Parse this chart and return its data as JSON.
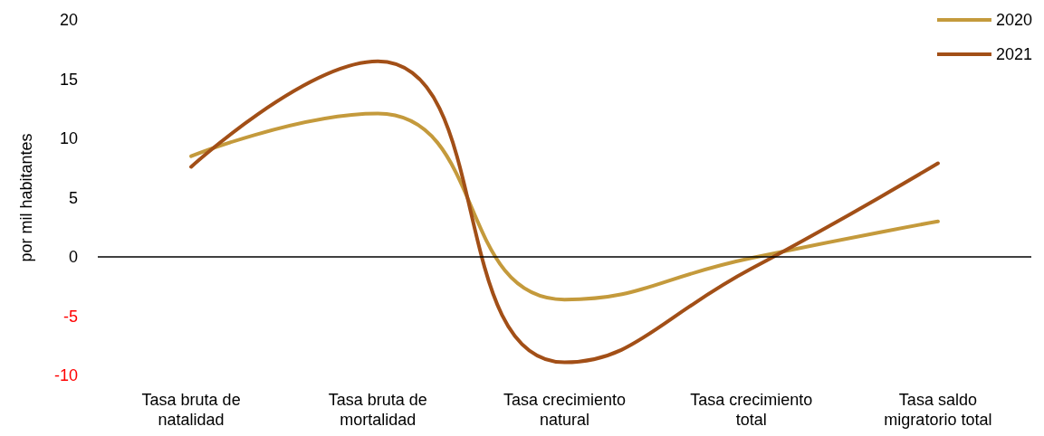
{
  "chart_data": {
    "type": "line",
    "ylabel": "por mil habitantes",
    "categories": [
      "Tasa bruta de\nnatalidad",
      "Tasa bruta de\nmortalidad",
      "Tasa crecimiento\nnatural",
      "Tasa crecimiento\ntotal",
      "Tasa saldo\nmigratorio total"
    ],
    "series": [
      {
        "name": "2020",
        "color": "#c49a3c",
        "values": [
          8.5,
          12.1,
          -3.6,
          -0.1,
          3.0
        ]
      },
      {
        "name": "2021",
        "color": "#a24f17",
        "values": [
          7.6,
          16.5,
          -8.9,
          -1.0,
          7.9
        ]
      }
    ],
    "ylim": [
      -10,
      20
    ],
    "yticks": [
      -10,
      -5,
      0,
      5,
      10,
      15,
      20
    ],
    "grid": false,
    "ref_lines": [
      {
        "axis": "y",
        "value": 0,
        "color": "#000000"
      }
    ],
    "legend": "top right",
    "marker": "none",
    "line_style": "solid"
  }
}
